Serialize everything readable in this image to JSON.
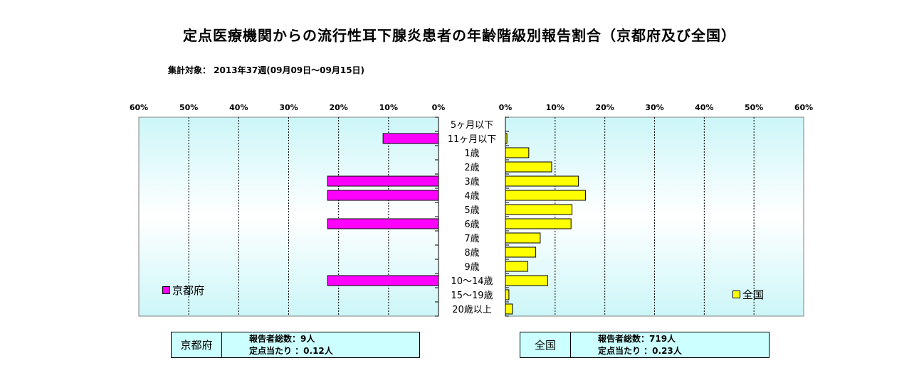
{
  "title": "定点医療機関からの流行性耳下腺炎患者の年齢階級別報告割合（京都府及び全国）",
  "subtitle": "集計対象：  2013年37週(09月09日～09月15日)",
  "colors": {
    "kyoto": "#ff00ff",
    "national": "#ffff00",
    "bg_edge": "#ccf6f8",
    "bg_mid": "#ffffff"
  },
  "chart_data": {
    "type": "bar",
    "orientation": "horizontal",
    "layout": "back-to-back",
    "categories": [
      "5ヶ月以下",
      "11ヶ月以下",
      "1歳",
      "2歳",
      "3歳",
      "4歳",
      "5歳",
      "6歳",
      "7歳",
      "8歳",
      "9歳",
      "10～14歳",
      "15～19歳",
      "20歳以上"
    ],
    "series": [
      {
        "name": "京都府",
        "color": "#ff00ff",
        "values": [
          0,
          11.1,
          0,
          0,
          22.2,
          22.2,
          0,
          22.2,
          0,
          0,
          0,
          22.2,
          0,
          0
        ]
      },
      {
        "name": "全国",
        "color": "#ffff00",
        "values": [
          0,
          0.3,
          4.7,
          9.3,
          14.7,
          16.1,
          13.4,
          13.2,
          7.0,
          6.1,
          4.5,
          8.5,
          0.7,
          1.4
        ]
      }
    ],
    "xlim": [
      0,
      60
    ],
    "ticks": [
      "60%",
      "50%",
      "40%",
      "30%",
      "20%",
      "10%",
      "0%"
    ],
    "ticks_right": [
      "0%",
      "10%",
      "20%",
      "30%",
      "40%",
      "50%",
      "60%"
    ],
    "grid": true,
    "legend_left": "京都府",
    "legend_right": "全国"
  },
  "summary_kyoto": {
    "name": "京都府",
    "total": "報告者総数：9人",
    "per_site": "定点当たり  ：0.12人"
  },
  "summary_national": {
    "name": "全国",
    "total": "報告者総数：719人",
    "per_site": "定点当たり  ：0.23人"
  }
}
